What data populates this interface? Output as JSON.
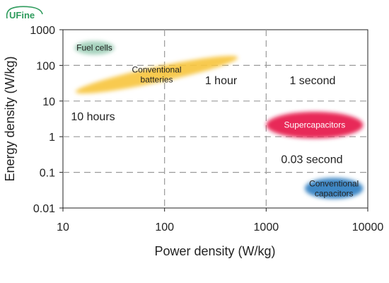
{
  "logo": {
    "text": "UFine"
  },
  "chart_data": {
    "type": "scatter",
    "title": "",
    "xlabel": "Power density (W/kg)",
    "ylabel": "Energy density (W/kg)",
    "x_scale": "log",
    "y_scale": "log",
    "xlim": [
      10,
      10000
    ],
    "ylim": [
      0.01,
      1000
    ],
    "x_ticks": [
      "10",
      "100",
      "1000",
      "10000"
    ],
    "y_ticks": [
      "0.01",
      "0.1",
      "1",
      "10",
      "100",
      "1000"
    ],
    "grid": true,
    "regions": [
      {
        "name": "Fuel cells",
        "label_lines": [
          "Fuel cells"
        ],
        "x_range": [
          13,
          32
        ],
        "y_range": [
          200,
          480
        ],
        "color": "#9fcfb9",
        "label_color": "#222222"
      },
      {
        "name": "Conventional batteries",
        "label_lines": [
          "Conventional",
          "batteries"
        ],
        "x_range": [
          14,
          500
        ],
        "y_range": [
          20,
          150
        ],
        "color": "#f7c63f",
        "label_color": "#222222"
      },
      {
        "name": "Supercapacitors",
        "label_lines": [
          "Supercapacitors"
        ],
        "x_range": [
          1000,
          9000
        ],
        "y_range": [
          0.9,
          5
        ],
        "color": "#e6174b",
        "label_color": "#ffffff"
      },
      {
        "name": "Conventional capacitors",
        "label_lines": [
          "Conventional",
          "capacitors"
        ],
        "x_range": [
          2400,
          9000
        ],
        "y_range": [
          0.018,
          0.07
        ],
        "color": "#2f7fc1",
        "label_color": "#222222"
      }
    ],
    "annotations": [
      {
        "text": "1 hour",
        "x": 250,
        "y": 30
      },
      {
        "text": "1 second",
        "x": 1700,
        "y": 30
      },
      {
        "text": "10 hours",
        "x": 12,
        "y": 2.9
      },
      {
        "text": "0.03 second",
        "x": 1400,
        "y": 0.18
      }
    ]
  }
}
